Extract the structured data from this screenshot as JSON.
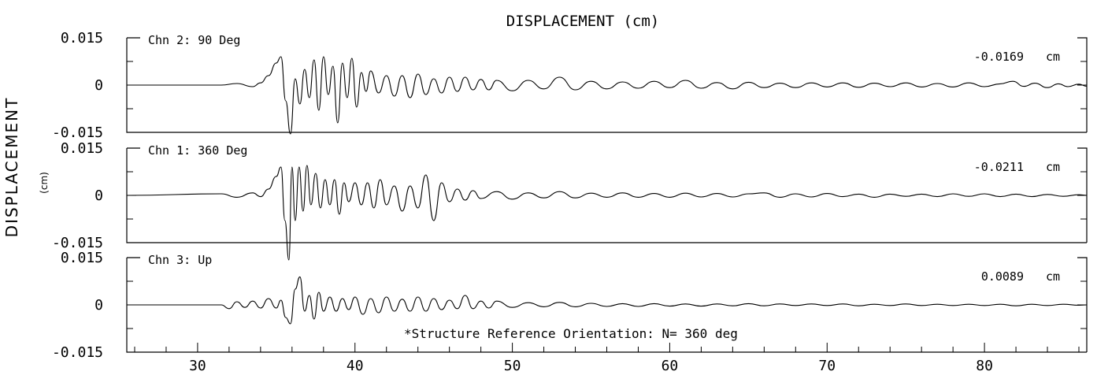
{
  "chart_data": {
    "type": "line",
    "title": "DISPLACEMENT (cm)",
    "ylabel": "DISPLACEMENT",
    "yunit": "(cm)",
    "xlim": [
      25.5,
      86.5
    ],
    "x_ticks": [
      30,
      40,
      50,
      60,
      70,
      80
    ],
    "x_tick_labels": [
      "30",
      "40",
      "50",
      "60",
      "70",
      "80"
    ],
    "ylim": [
      -0.015,
      0.015
    ],
    "y_tick_labels": [
      "0.015",
      "0",
      "-0.015"
    ],
    "grid": false,
    "note": "*Structure Reference Orientation: N= 360 deg",
    "panels": [
      {
        "name": "Chn 2: 90 Deg",
        "peak_label": "-0.0169",
        "unit": "cm",
        "x": [
          25.5,
          31.5,
          32.5,
          33.5,
          34.0,
          34.5,
          35.0,
          35.3,
          35.6,
          35.9,
          36.2,
          36.5,
          36.8,
          37.1,
          37.4,
          37.7,
          38.0,
          38.3,
          38.6,
          38.9,
          39.2,
          39.5,
          39.8,
          40.1,
          40.4,
          40.7,
          41.0,
          41.5,
          42.0,
          42.5,
          43.0,
          43.5,
          44.0,
          44.5,
          45.0,
          45.5,
          46.0,
          46.5,
          47.0,
          47.5,
          48.0,
          48.5,
          49.0,
          50.0,
          51.0,
          52.0,
          53.0,
          54.0,
          55.0,
          56.0,
          57.0,
          58.0,
          59.0,
          60.0,
          61.0,
          62.0,
          63.0,
          64.0,
          65.0,
          66.0,
          67.0,
          68.0,
          69.0,
          70.0,
          71.0,
          72.0,
          73.0,
          74.0,
          75.0,
          76.0,
          77.0,
          78.0,
          79.0,
          80.0,
          81.0,
          81.8,
          82.5,
          83.2,
          84.0,
          84.7,
          85.3,
          86.0,
          86.5
        ],
        "y": [
          0,
          0,
          0.0005,
          -0.0005,
          0.0007,
          0.003,
          0.007,
          0.009,
          -0.005,
          -0.0155,
          0.002,
          -0.006,
          0.005,
          -0.004,
          0.008,
          -0.008,
          0.009,
          -0.003,
          0.006,
          -0.012,
          0.007,
          -0.004,
          0.0085,
          -0.007,
          0.004,
          -0.002,
          0.0045,
          -0.0025,
          0.003,
          -0.0035,
          0.003,
          -0.004,
          0.0035,
          -0.003,
          0.002,
          -0.0025,
          0.0025,
          -0.002,
          0.0025,
          -0.0015,
          0.0018,
          -0.0015,
          0.0015,
          -0.0018,
          0.0015,
          -0.0012,
          0.0025,
          -0.0015,
          0.0012,
          -0.0012,
          0.001,
          -0.001,
          0.0012,
          -0.0008,
          0.0015,
          -0.001,
          0.0008,
          -0.0012,
          0.0009,
          -0.0008,
          0.0006,
          -0.0008,
          0.0007,
          -0.0006,
          0.0007,
          -0.0007,
          0.0006,
          -0.0005,
          0.0007,
          -0.0006,
          0.0005,
          -0.0006,
          0.0007,
          -0.0005,
          0.0004,
          0.0012,
          -0.0004,
          0.0006,
          -0.0008,
          0.0004,
          -0.0005,
          0.0003,
          -0.0004
        ]
      },
      {
        "name": "Chn 1: 360 Deg",
        "peak_label": "-0.0211",
        "unit": "cm",
        "x": [
          25.5,
          31.5,
          32.5,
          33.5,
          34.0,
          34.5,
          35.0,
          35.3,
          35.55,
          35.8,
          36.0,
          36.2,
          36.45,
          36.7,
          36.95,
          37.2,
          37.5,
          37.8,
          38.1,
          38.4,
          38.7,
          39.0,
          39.3,
          39.6,
          40.0,
          40.4,
          40.8,
          41.2,
          41.6,
          42.0,
          42.5,
          43.0,
          43.5,
          44.0,
          44.5,
          45.0,
          45.5,
          46.0,
          46.5,
          47.0,
          47.5,
          48.0,
          49.0,
          50.0,
          51.0,
          52.0,
          53.0,
          54.0,
          55.0,
          56.0,
          57.0,
          58.0,
          59.0,
          60.0,
          61.0,
          62.0,
          63.0,
          64.0,
          65.0,
          66.0,
          67.0,
          68.0,
          69.0,
          70.0,
          71.0,
          72.0,
          73.0,
          74.0,
          75.0,
          76.0,
          77.0,
          78.0,
          79.0,
          80.0,
          81.0,
          82.0,
          83.0,
          84.0,
          85.0,
          86.0,
          86.5
        ],
        "y": [
          0,
          0.0005,
          -0.0006,
          0.0008,
          -0.0004,
          0.002,
          0.006,
          0.009,
          -0.008,
          -0.0205,
          0.009,
          -0.008,
          0.009,
          -0.005,
          0.0095,
          -0.003,
          0.007,
          -0.004,
          0.005,
          -0.003,
          0.005,
          -0.006,
          0.004,
          -0.002,
          0.004,
          -0.003,
          0.004,
          -0.004,
          0.005,
          -0.003,
          0.003,
          -0.005,
          0.003,
          -0.004,
          0.0065,
          -0.008,
          0.004,
          -0.002,
          0.002,
          -0.0015,
          0.0015,
          -0.001,
          0.0012,
          -0.0012,
          0.0008,
          -0.0008,
          0.0012,
          -0.0008,
          0.0007,
          -0.0006,
          0.0008,
          -0.0006,
          0.0006,
          -0.0006,
          0.0007,
          -0.0005,
          0.0006,
          -0.0005,
          0.0005,
          0.0008,
          -0.0006,
          0.0005,
          -0.0005,
          0.0006,
          -0.0004,
          0.0004,
          -0.0006,
          0.0004,
          -0.0003,
          0.0004,
          -0.0004,
          0.0005,
          -0.0003,
          0.0005,
          -0.0004,
          0.0004,
          -0.0004,
          0.0003,
          -0.0003,
          0.0002,
          0
        ]
      },
      {
        "name": "Chn 3: Up",
        "peak_label": "0.0089",
        "unit": "cm",
        "x": [
          25.5,
          31.5,
          32.0,
          32.5,
          33.0,
          33.5,
          34.0,
          34.5,
          35.0,
          35.3,
          35.6,
          35.9,
          36.2,
          36.5,
          36.8,
          37.1,
          37.4,
          37.7,
          38.0,
          38.4,
          38.8,
          39.2,
          39.6,
          40.0,
          40.5,
          41.0,
          41.5,
          42.0,
          42.5,
          43.0,
          43.5,
          44.0,
          44.5,
          45.0,
          45.5,
          46.0,
          46.5,
          47.0,
          47.5,
          48.0,
          48.5,
          49.0,
          50.0,
          51.0,
          52.0,
          53.0,
          54.0,
          55.0,
          56.0,
          57.0,
          58.0,
          59.0,
          60.0,
          61.0,
          62.0,
          63.0,
          64.0,
          65.0,
          66.0,
          67.0,
          68.0,
          69.0,
          70.0,
          71.0,
          72.0,
          73.0,
          74.0,
          75.0,
          76.0,
          77.0,
          78.0,
          79.0,
          80.0,
          81.0,
          82.0,
          83.0,
          84.0,
          85.0,
          86.0,
          86.5
        ],
        "y": [
          0,
          0,
          -0.0012,
          0.001,
          -0.0008,
          0.0012,
          -0.001,
          0.002,
          -0.001,
          0.0015,
          -0.004,
          -0.006,
          0.005,
          0.0089,
          -0.002,
          0.003,
          -0.0045,
          0.004,
          -0.002,
          0.0025,
          -0.002,
          0.002,
          -0.0015,
          0.0025,
          -0.003,
          0.002,
          -0.0025,
          0.0025,
          -0.002,
          0.0018,
          -0.002,
          0.0025,
          -0.002,
          0.002,
          -0.0015,
          0.0015,
          -0.0012,
          0.003,
          -0.0012,
          0.0012,
          -0.001,
          0.0012,
          -0.0008,
          0.0007,
          -0.0006,
          0.0008,
          -0.0006,
          0.0005,
          -0.0005,
          0.0004,
          -0.0005,
          0.0004,
          -0.0004,
          0.0003,
          -0.0004,
          0.0003,
          -0.0003,
          0.0004,
          -0.0003,
          0.0003,
          -0.0002,
          0.0003,
          -0.0002,
          0.0003,
          -0.0003,
          0.0002,
          -0.0002,
          0.0003,
          -0.0002,
          0.0002,
          -0.0002,
          0.0002,
          -0.0002,
          0.0002,
          -0.0003,
          0.0002,
          -0.0002,
          0.0002,
          -0.0001,
          0
        ]
      }
    ]
  }
}
